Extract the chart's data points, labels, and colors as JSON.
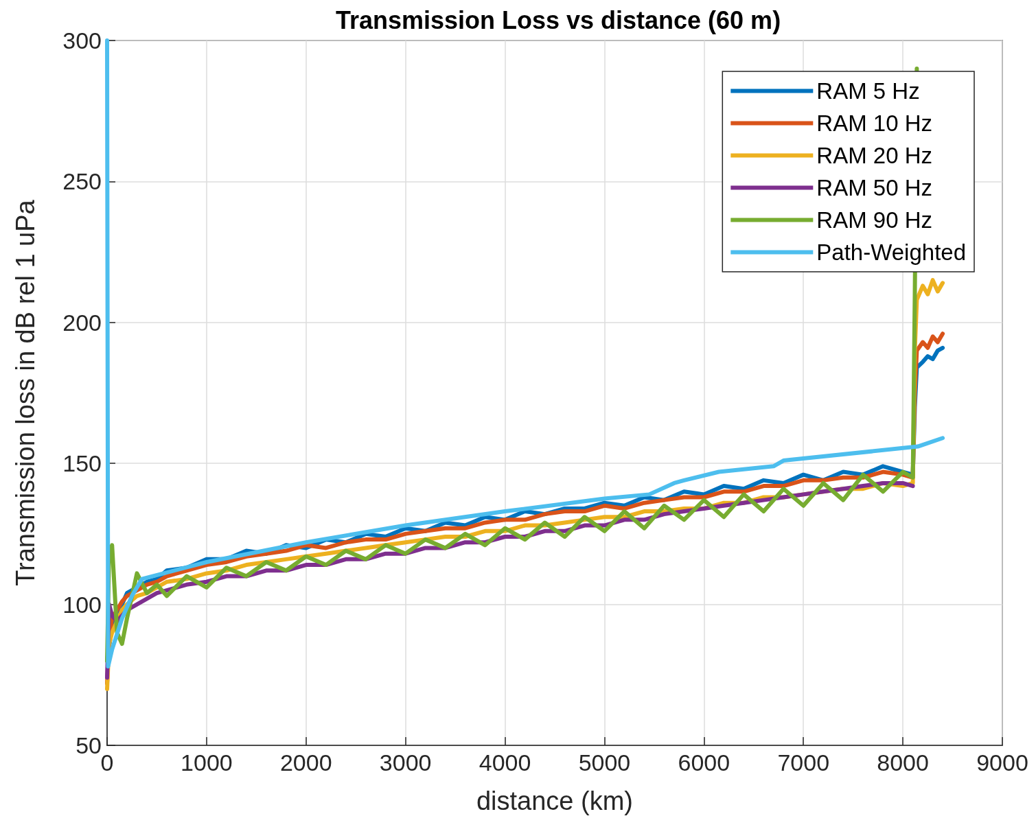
{
  "chart_data": {
    "type": "line",
    "title": "Transmission Loss vs distance (60 m)",
    "xlabel": "distance (km)",
    "ylabel": "Transmission loss in dB rel 1 uPa",
    "x": [
      0,
      20,
      50,
      100,
      150,
      200,
      300,
      400,
      500,
      600,
      800,
      1000,
      1200,
      1400,
      1600,
      1800,
      2000,
      2200,
      2400,
      2600,
      2800,
      3000,
      3200,
      3400,
      3600,
      3800,
      4000,
      4200,
      4400,
      4600,
      4800,
      5000,
      5200,
      5400,
      5600,
      5800,
      6000,
      6200,
      6400,
      6600,
      6800,
      7000,
      7200,
      7400,
      7600,
      7800,
      8000,
      8100,
      8120,
      8140,
      8200,
      8250,
      8300,
      8350,
      8400
    ],
    "xlim": [
      0,
      9000
    ],
    "xticks": [
      0,
      1000,
      2000,
      3000,
      4000,
      5000,
      6000,
      7000,
      8000,
      9000
    ],
    "ylim": [
      50,
      300
    ],
    "yticks": [
      50,
      100,
      150,
      200,
      250,
      300
    ],
    "grid": true,
    "legend": "top right",
    "marker": "none",
    "line_style": "solid",
    "series": [
      {
        "name": "RAM 5 Hz",
        "color": "#0072bd",
        "values": [
          80,
          85,
          92,
          96,
          100,
          104,
          106,
          108,
          109,
          112,
          113,
          116,
          116,
          119,
          118,
          121,
          120,
          123,
          122,
          125,
          124,
          127,
          126,
          129,
          128,
          131,
          130,
          133,
          132,
          134,
          134,
          136,
          135,
          138,
          137,
          140,
          139,
          142,
          141,
          144,
          143,
          146,
          144,
          147,
          146,
          149,
          147,
          146,
          170,
          184,
          186,
          188,
          187,
          190,
          191
        ]
      },
      {
        "name": "RAM 10 Hz",
        "color": "#d95319",
        "values": [
          72,
          88,
          95,
          98,
          101,
          103,
          105,
          107,
          108,
          110,
          112,
          114,
          115,
          117,
          118,
          119,
          121,
          120,
          122,
          123,
          123,
          125,
          126,
          127,
          127,
          129,
          130,
          130,
          132,
          133,
          133,
          135,
          134,
          136,
          137,
          138,
          138,
          140,
          140,
          142,
          142,
          144,
          144,
          145,
          145,
          147,
          146,
          145,
          175,
          190,
          193,
          191,
          195,
          193,
          196
        ]
      },
      {
        "name": "RAM 20 Hz",
        "color": "#edb120",
        "values": [
          70,
          86,
          90,
          94,
          98,
          100,
          103,
          104,
          106,
          108,
          109,
          111,
          112,
          114,
          115,
          116,
          117,
          118,
          119,
          120,
          121,
          122,
          123,
          124,
          124,
          126,
          126,
          128,
          128,
          129,
          130,
          131,
          131,
          133,
          133,
          134,
          134,
          136,
          136,
          138,
          138,
          139,
          140,
          141,
          141,
          143,
          142,
          143,
          190,
          208,
          213,
          210,
          215,
          211,
          214
        ]
      },
      {
        "name": "RAM 50 Hz",
        "color": "#7e2f8e",
        "values": [
          74,
          100,
          96,
          94,
          96,
          98,
          100,
          102,
          104,
          105,
          107,
          108,
          110,
          110,
          112,
          112,
          114,
          114,
          116,
          116,
          118,
          118,
          120,
          120,
          122,
          122,
          124,
          124,
          126,
          126,
          128,
          128,
          130,
          130,
          132,
          133,
          134,
          135,
          136,
          137,
          138,
          139,
          140,
          141,
          142,
          143,
          143,
          142,
          null,
          null,
          null,
          null,
          null,
          null,
          null
        ]
      },
      {
        "name": "RAM 90 Hz",
        "color": "#77ac30",
        "values": [
          80,
          118,
          121,
          90,
          86,
          95,
          111,
          104,
          107,
          103,
          110,
          106,
          113,
          110,
          115,
          112,
          117,
          114,
          119,
          116,
          121,
          118,
          123,
          120,
          125,
          121,
          127,
          123,
          129,
          124,
          131,
          126,
          133,
          127,
          135,
          130,
          137,
          131,
          139,
          133,
          141,
          135,
          143,
          137,
          146,
          140,
          147,
          145,
          210,
          290,
          null,
          null,
          null,
          null,
          null
        ]
      },
      {
        "name": "Path-Weighted",
        "color": "#4dbeee",
        "x": [
          0,
          10,
          50,
          150,
          250,
          350,
          1000,
          2000,
          3000,
          4000,
          5000,
          5450,
          5700,
          5800,
          6150,
          6700,
          6800,
          8150,
          8400
        ],
        "values": [
          300,
          78,
          84,
          95,
          103,
          109,
          115,
          122,
          128,
          133,
          137.5,
          139,
          143,
          144,
          147,
          149,
          151,
          156,
          159
        ]
      }
    ]
  }
}
